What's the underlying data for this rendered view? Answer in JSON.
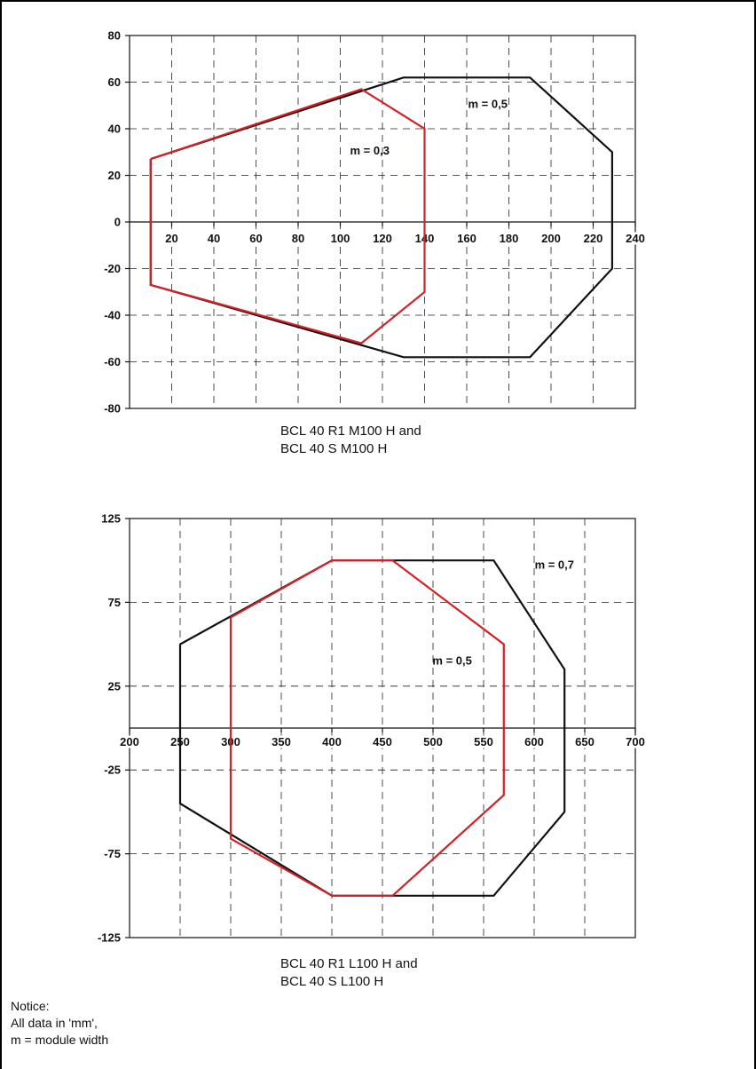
{
  "chart_data": [
    {
      "type": "line",
      "title": "",
      "xlabel": "",
      "ylabel": "",
      "xlim": [
        0,
        240
      ],
      "ylim": [
        -80,
        80
      ],
      "x_ticks": [
        20,
        40,
        60,
        80,
        100,
        120,
        140,
        160,
        180,
        200,
        220,
        240
      ],
      "y_ticks": [
        80,
        60,
        40,
        20,
        0,
        -20,
        -40,
        -60,
        -80
      ],
      "grid": true,
      "series": [
        {
          "name": "m = 0,5",
          "color": "#111111",
          "points": [
            [
              10,
              27
            ],
            [
              130,
              62
            ],
            [
              190,
              62
            ],
            [
              229,
              30
            ],
            [
              229,
              -20
            ],
            [
              190,
              -58
            ],
            [
              130,
              -58
            ],
            [
              10,
              -27
            ],
            [
              10,
              27
            ]
          ]
        },
        {
          "name": "m = 0,3",
          "color": "#d42027",
          "points": [
            [
              10,
              27
            ],
            [
              110,
              57
            ],
            [
              140,
              40
            ],
            [
              140,
              -30
            ],
            [
              110,
              -52
            ],
            [
              10,
              -27
            ],
            [
              10,
              27
            ]
          ]
        }
      ],
      "annotations": [
        {
          "text": "m = 0,5",
          "x": 170,
          "y": 49
        },
        {
          "text": "m = 0,3",
          "x": 114,
          "y": 29
        }
      ],
      "caption": [
        "BCL 40 R1 M100 H and",
        "BCL 40 S M100 H"
      ]
    },
    {
      "type": "line",
      "title": "",
      "xlabel": "",
      "ylabel": "",
      "xlim": [
        200,
        700
      ],
      "ylim": [
        -125,
        125
      ],
      "x_ticks": [
        200,
        250,
        300,
        350,
        400,
        450,
        500,
        550,
        600,
        650,
        700
      ],
      "y_ticks": [
        125,
        75,
        25,
        -25,
        -75,
        -125
      ],
      "grid": true,
      "series": [
        {
          "name": "m = 0,7",
          "color": "#111111",
          "points": [
            [
              250,
              50
            ],
            [
              400,
              100
            ],
            [
              560,
              100
            ],
            [
              630,
              35
            ],
            [
              630,
              -50
            ],
            [
              560,
              -100
            ],
            [
              400,
              -100
            ],
            [
              250,
              -45
            ],
            [
              250,
              50
            ]
          ]
        },
        {
          "name": "m = 0,5",
          "color": "#d42027",
          "points": [
            [
              300,
              66
            ],
            [
              400,
              100
            ],
            [
              460,
              100
            ],
            [
              570,
              50
            ],
            [
              570,
              -40
            ],
            [
              460,
              -100
            ],
            [
              400,
              -100
            ],
            [
              300,
              -66
            ],
            [
              300,
              66
            ]
          ]
        }
      ],
      "annotations": [
        {
          "text": "m = 0,7",
          "x": 620,
          "y": 95
        },
        {
          "text": "m = 0,5",
          "x": 519,
          "y": 38
        }
      ],
      "caption": [
        "BCL 40 R1 L100 H and",
        "BCL 40 S L100 H"
      ]
    }
  ],
  "notice": "Notice:\nAll data in 'mm',\nm = module width"
}
